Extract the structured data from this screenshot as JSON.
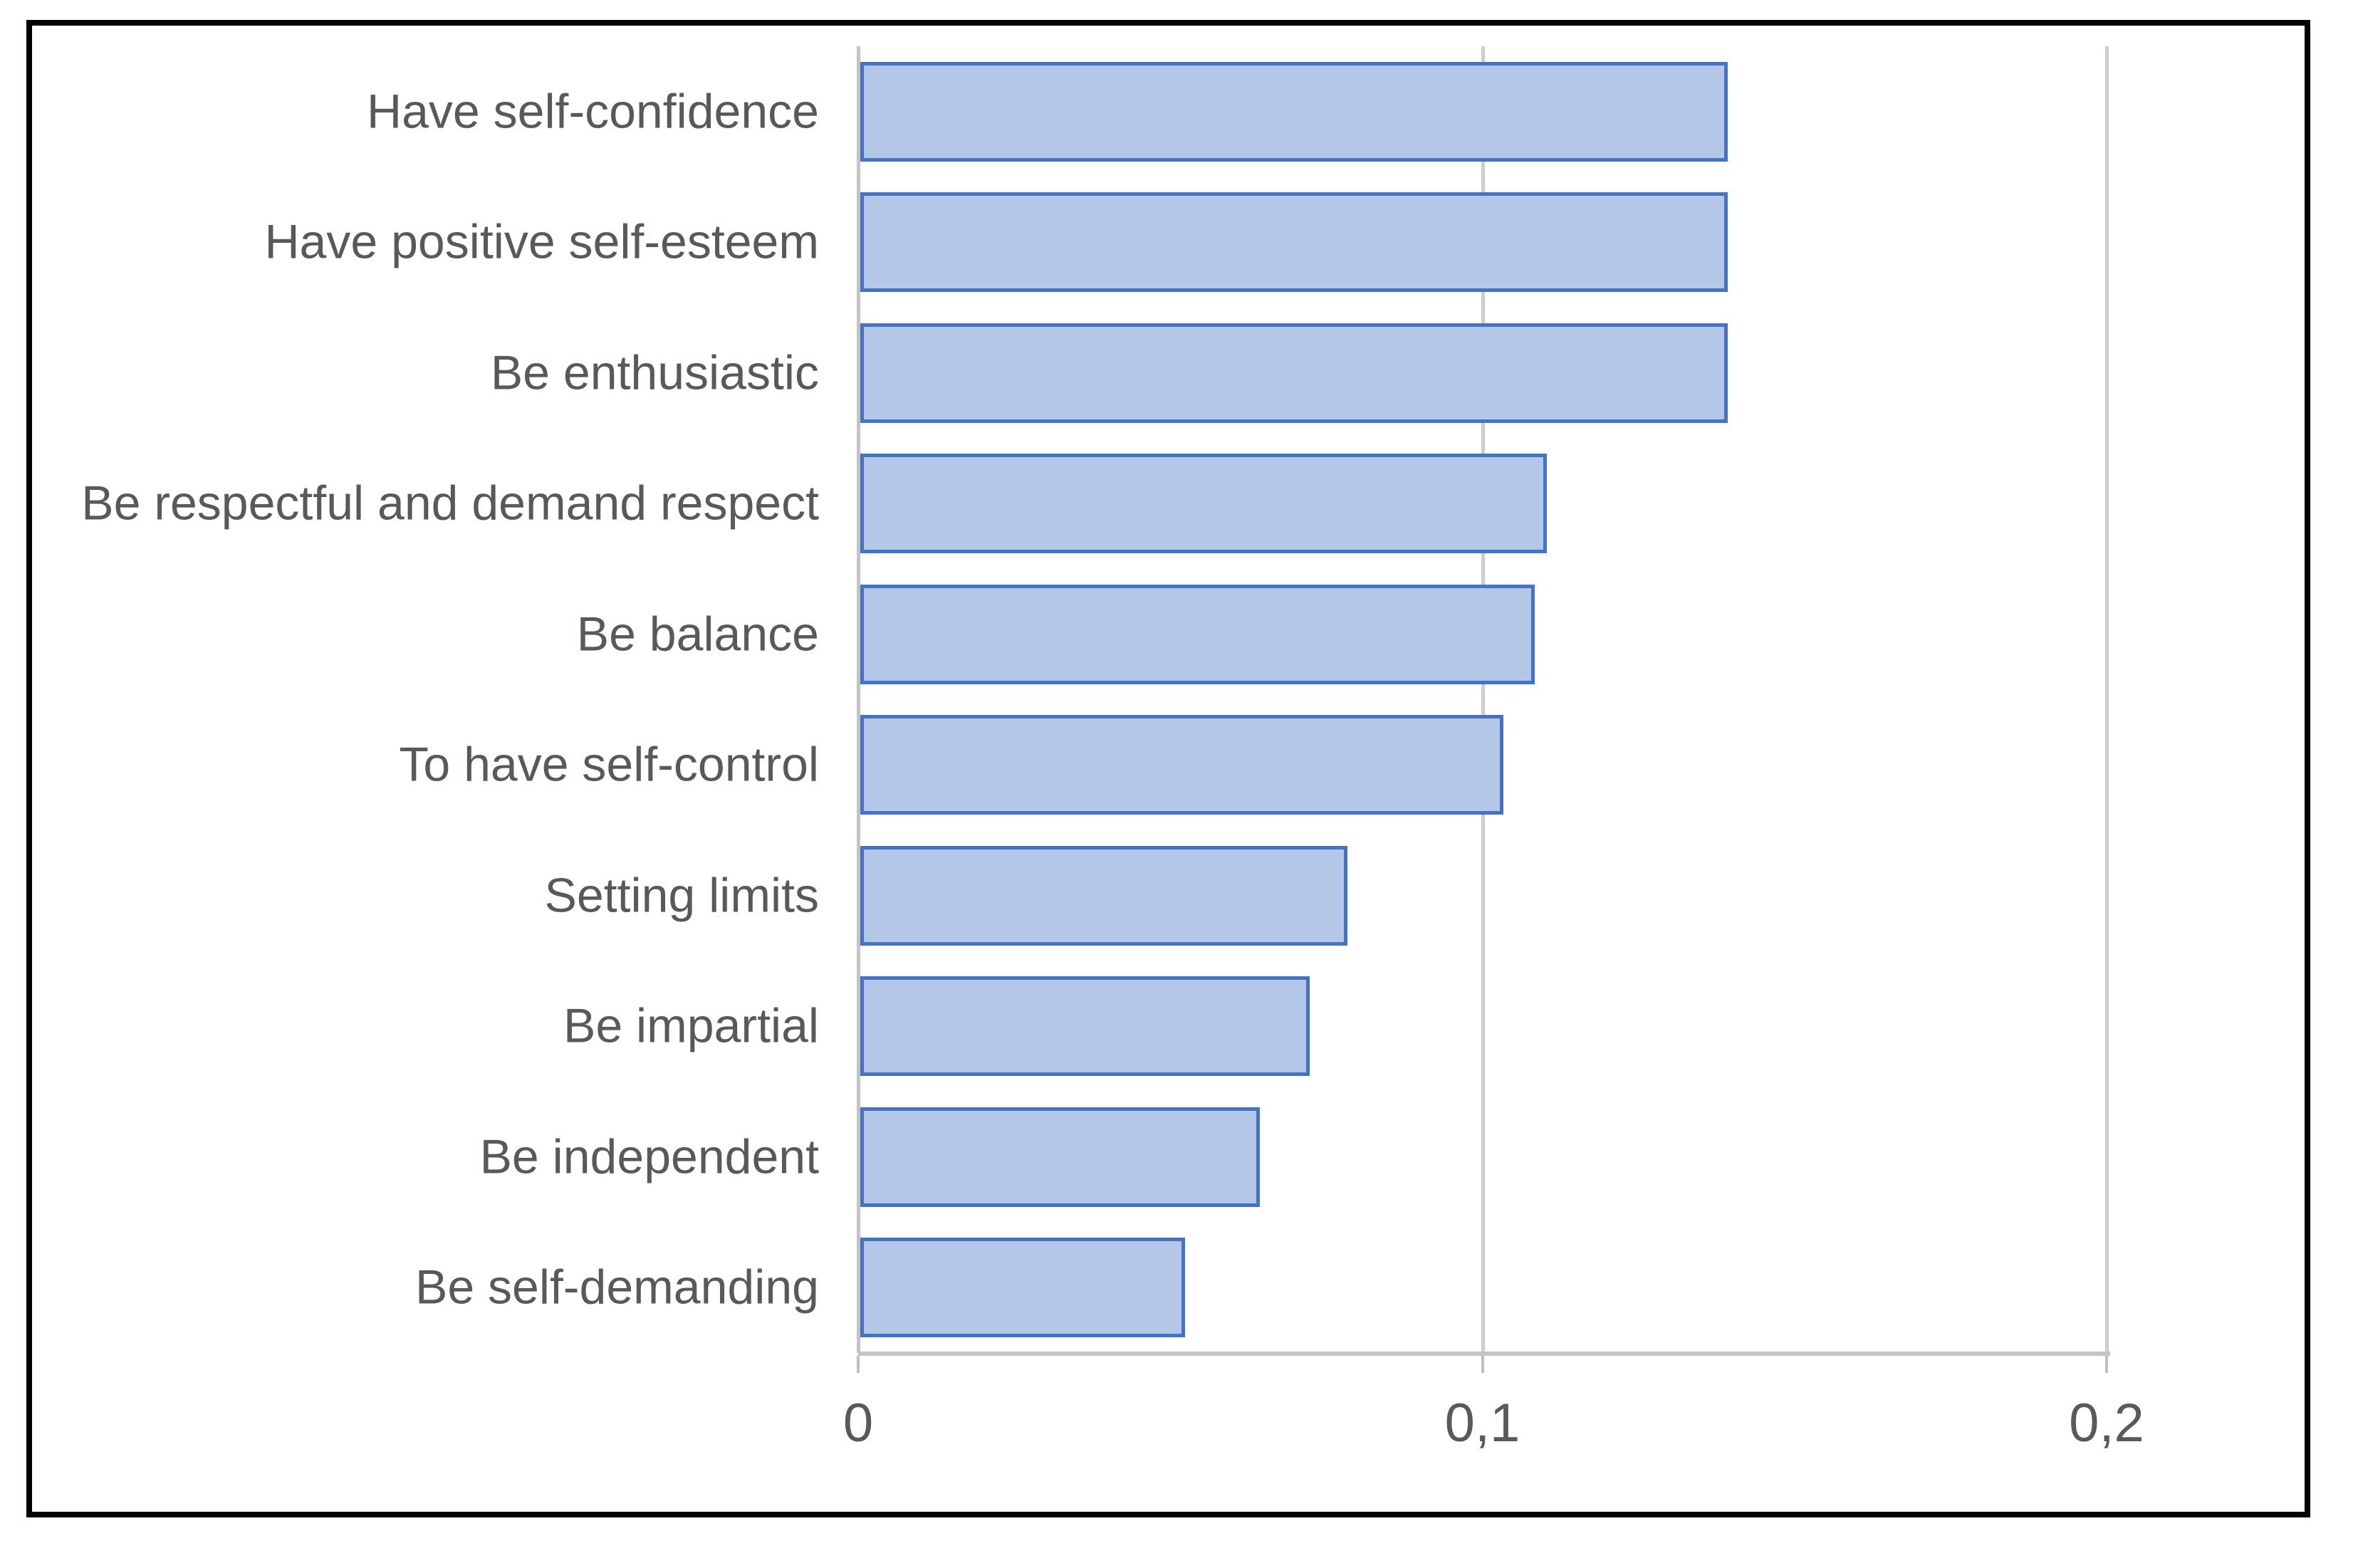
{
  "figure": {
    "background_color": "#ffffff",
    "frame_border_color": "#000000"
  },
  "chart_data": {
    "type": "bar",
    "orientation": "horizontal",
    "title": "",
    "xlabel": "",
    "ylabel": "",
    "categories": [
      "Have self-confidence",
      "Have positive self-esteem",
      "Be enthusiastic",
      "Be respectful and demand respect",
      "Be balance",
      "To have self-control",
      "Setting limits",
      "Be impartial",
      "Be independent",
      "Be self-demanding"
    ],
    "values": [
      0.139,
      0.139,
      0.139,
      0.11,
      0.108,
      0.103,
      0.078,
      0.072,
      0.064,
      0.052
    ],
    "xlim": [
      0,
      0.2
    ],
    "x_tick_values": [
      0,
      0.1,
      0.2
    ],
    "x_tick_labels": [
      "0",
      "0,1",
      "0,2"
    ],
    "decimal_separator": ",",
    "grid": "vertical gridlines at x ticks",
    "legend": "none",
    "bar_fill_color": "#b4c7e7",
    "bar_border_color": "#4472c4",
    "gridline_color": "#cdcdcd",
    "axis_line_color": "#c3c3c3",
    "text_color": "#595959"
  }
}
